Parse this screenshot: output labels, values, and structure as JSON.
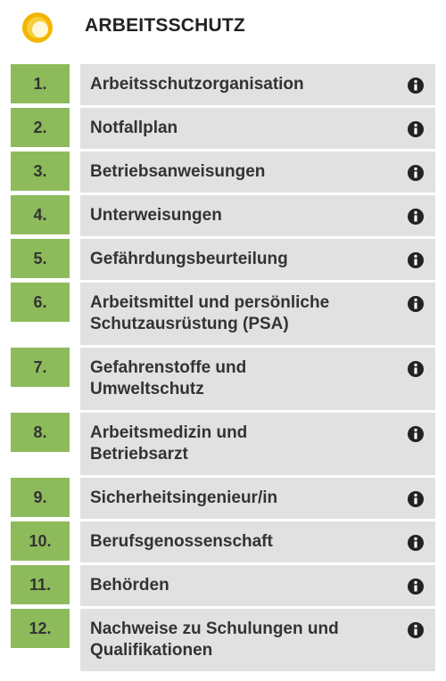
{
  "header": {
    "title": "ARBEITSSCHUTZ"
  },
  "items": [
    {
      "number": "1.",
      "lines": [
        "Arbeitsschutzorganisation"
      ]
    },
    {
      "number": "2.",
      "lines": [
        "Notfallplan"
      ]
    },
    {
      "number": "3.",
      "lines": [
        "Betriebsanweisungen"
      ]
    },
    {
      "number": "4.",
      "lines": [
        "Unterweisungen"
      ]
    },
    {
      "number": "5.",
      "lines": [
        "Gefährdungsbeurteilung"
      ]
    },
    {
      "number": "6.",
      "lines": [
        "Arbeitsmittel und persönliche",
        "Schutzausrüstung (PSA)"
      ]
    },
    {
      "number": "7.",
      "lines": [
        "Gefahrenstoffe und",
        "Umweltschutz"
      ]
    },
    {
      "number": "8.",
      "lines": [
        "Arbeitsmedizin und",
        "Betriebsarzt"
      ]
    },
    {
      "number": "9.",
      "lines": [
        "Sicherheitsingenieur/in"
      ]
    },
    {
      "number": "10.",
      "lines": [
        "Berufsgenossenschaft"
      ]
    },
    {
      "number": "11.",
      "lines": [
        "Behörden"
      ]
    },
    {
      "number": "12.",
      "lines": [
        "Nachweise zu Schulungen und",
        "Qualifikationen"
      ]
    }
  ]
}
